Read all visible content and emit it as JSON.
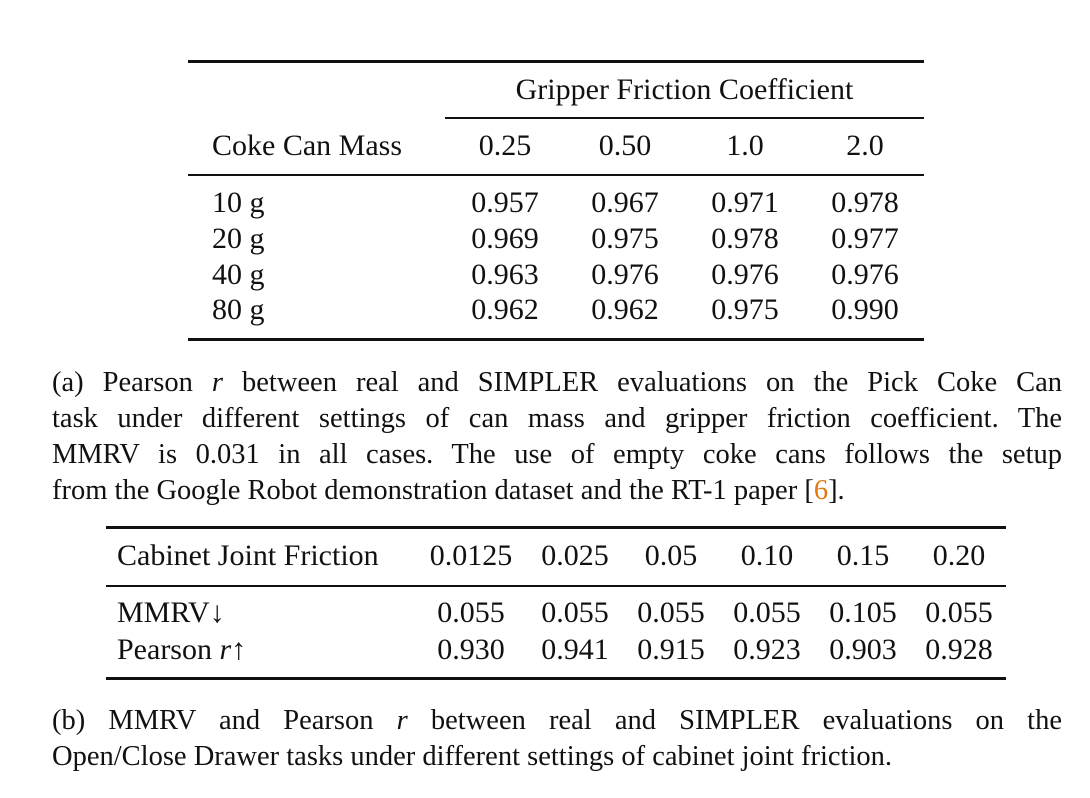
{
  "table_a": {
    "group_header": "Gripper Friction Coefficient",
    "row_header": "Coke Can Mass",
    "columns": [
      "0.25",
      "0.50",
      "1.0",
      "2.0"
    ],
    "rows": [
      {
        "label": "10 g",
        "values": [
          "0.957",
          "0.967",
          "0.971",
          "0.978"
        ]
      },
      {
        "label": "20 g",
        "values": [
          "0.969",
          "0.975",
          "0.978",
          "0.977"
        ]
      },
      {
        "label": "40 g",
        "values": [
          "0.963",
          "0.976",
          "0.976",
          "0.976"
        ]
      },
      {
        "label": "80 g",
        "values": [
          "0.962",
          "0.962",
          "0.975",
          "0.990"
        ]
      }
    ]
  },
  "caption_a": {
    "lines": [
      "(a) Pearson",
      "r",
      "between real and SIMPLER evaluations on the Pick Coke Can",
      "task under different settings of can mass and gripper friction coefficient. The",
      "MMRV is 0.031 in all cases. The use of empty coke cans follows the setup",
      "from the Google Robot demonstration dataset and the RT-1 paper [",
      "6",
      "]."
    ]
  },
  "table_b": {
    "row_header": "Cabinet Joint Friction",
    "columns": [
      "0.0125",
      "0.025",
      "0.05",
      "0.10",
      "0.15",
      "0.20"
    ],
    "rows": [
      {
        "label": "MMRV↓",
        "values": [
          "0.055",
          "0.055",
          "0.055",
          "0.055",
          "0.105",
          "0.055"
        ]
      },
      {
        "label_prefix": "Pearson",
        "label_var": "r",
        "label_suffix": "↑",
        "values": [
          "0.930",
          "0.941",
          "0.915",
          "0.923",
          "0.903",
          "0.928"
        ]
      }
    ]
  },
  "caption_b": {
    "lines": [
      "(b) MMRV and Pearson",
      "r",
      "between real and SIMPLER evaluations on the",
      "Open/Close Drawer tasks under different settings of cabinet joint friction."
    ]
  }
}
